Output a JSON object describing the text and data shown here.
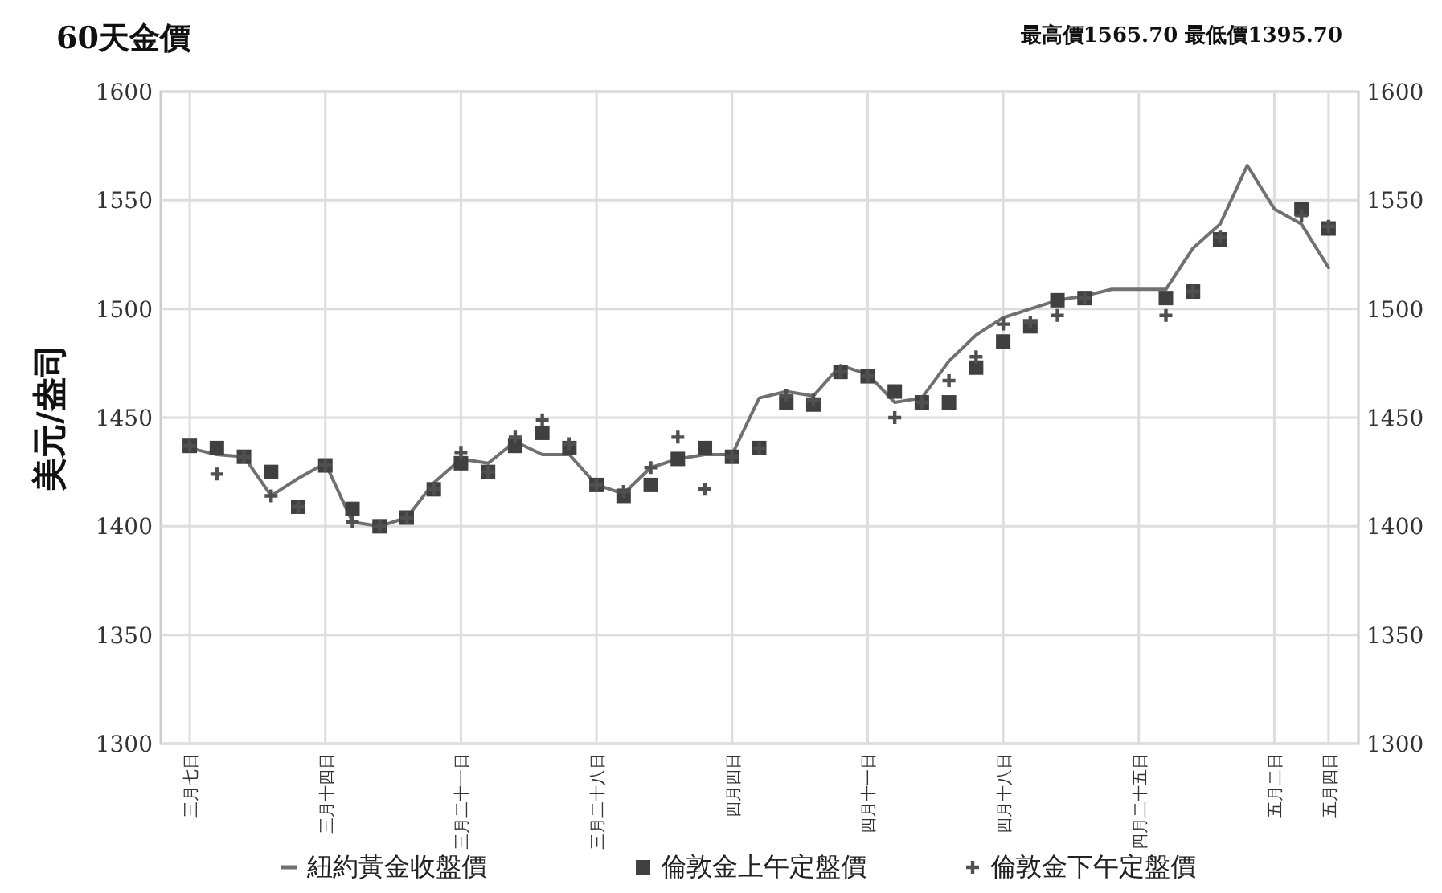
{
  "chart_data": {
    "type": "line",
    "title": "60天金價",
    "subtitle": "最高價1565.70 最低價1395.70",
    "ylabel": "美元/盎司",
    "categories": [
      "三月七日",
      null,
      null,
      null,
      null,
      "三月十四日",
      null,
      null,
      null,
      null,
      "三月二十一日",
      null,
      null,
      null,
      null,
      "三月二十八日",
      null,
      null,
      null,
      null,
      "四月四日",
      null,
      null,
      null,
      null,
      "四月十一日",
      null,
      null,
      null,
      null,
      "四月十八日",
      null,
      null,
      null,
      null,
      "四月二十五日",
      null,
      null,
      null,
      null,
      "五月二日",
      null,
      "五月四日"
    ],
    "series": [
      {
        "name": "紐約黃金收盤價",
        "type": "line",
        "marker": "none",
        "color": "#707070",
        "values": [
          1436,
          1433,
          1432,
          1414,
          1422,
          1429,
          1402,
          1400,
          1404,
          1420,
          1431,
          1429,
          1439,
          1433,
          1433,
          1419,
          1415,
          1427,
          1431,
          1433,
          1433,
          1459,
          1462,
          1460,
          1474,
          1470,
          1457,
          1459,
          1476,
          1488,
          1496,
          1500,
          1504,
          1506,
          1509,
          1509,
          1509,
          1528,
          1539,
          1566,
          1546,
          1539,
          1519
        ]
      },
      {
        "name": "倫敦金上午定盤價",
        "type": "scatter",
        "marker": "square",
        "color": "#404040",
        "values": [
          1437,
          1436,
          1432,
          1425,
          1409,
          1428,
          1408,
          1400,
          1404,
          1417,
          1429,
          1425,
          1437,
          1443,
          1436,
          1419,
          1414,
          1419,
          1431,
          1436,
          1432,
          1436,
          1457,
          1456,
          1471,
          1469,
          1462,
          1457,
          1457,
          1473,
          1485,
          1492,
          1504,
          1505,
          null,
          null,
          1505,
          1508,
          1532,
          null,
          null,
          1546,
          1537
        ]
      },
      {
        "name": "倫敦金下午定盤價",
        "type": "scatter",
        "marker": "cross",
        "color": "#505050",
        "values": [
          1437,
          1424,
          1432,
          1414,
          1409,
          1428,
          1402,
          1400,
          1404,
          1417,
          1434,
          1425,
          1441,
          1449,
          1438,
          1419,
          1416,
          1427,
          1441,
          1417,
          1432,
          1436,
          1460,
          1458,
          1471,
          1469,
          1450,
          1457,
          1467,
          1478,
          1493,
          1494,
          1497,
          1505,
          null,
          null,
          1497,
          1508,
          1533,
          null,
          null,
          1543,
          1538
        ]
      }
    ],
    "ylim": [
      1300,
      1600
    ],
    "yticks": [
      1300,
      1350,
      1400,
      1450,
      1500,
      1550,
      1600
    ],
    "y2lim": [
      1300,
      1600
    ],
    "y2ticks": [
      1300,
      1350,
      1400,
      1450,
      1500,
      1550,
      1600
    ],
    "grid": true,
    "legend": "bottom"
  }
}
